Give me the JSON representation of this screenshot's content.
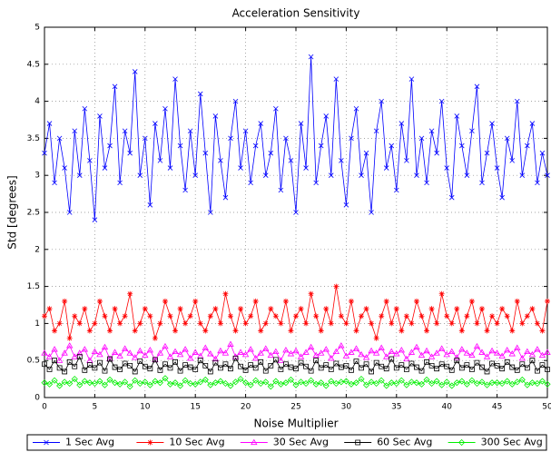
{
  "chart_data": {
    "type": "line",
    "title": "Acceleration Sensitivity",
    "xlabel": "Noise Multiplier",
    "ylabel": "Std [degrees]",
    "xlim": [
      0,
      50
    ],
    "xticks": [
      0,
      5,
      10,
      15,
      20,
      25,
      30,
      35,
      40,
      45,
      50
    ],
    "ylim": [
      0,
      5
    ],
    "yticks": [
      0,
      0.5,
      1,
      1.5,
      2,
      2.5,
      3,
      3.5,
      4,
      4.5,
      5
    ],
    "grid": true,
    "legend": "bottom",
    "x": [
      0,
      0.5,
      1,
      1.5,
      2,
      2.5,
      3,
      3.5,
      4,
      4.5,
      5,
      5.5,
      6,
      6.5,
      7,
      7.5,
      8,
      8.5,
      9,
      9.5,
      10,
      10.5,
      11,
      11.5,
      12,
      12.5,
      13,
      13.5,
      14,
      14.5,
      15,
      15.5,
      16,
      16.5,
      17,
      17.5,
      18,
      18.5,
      19,
      19.5,
      20,
      20.5,
      21,
      21.5,
      22,
      22.5,
      23,
      23.5,
      24,
      24.5,
      25,
      25.5,
      26,
      26.5,
      27,
      27.5,
      28,
      28.5,
      29,
      29.5,
      30,
      30.5,
      31,
      31.5,
      32,
      32.5,
      33,
      33.5,
      34,
      34.5,
      35,
      35.5,
      36,
      36.5,
      37,
      37.5,
      38,
      38.5,
      39,
      39.5,
      40,
      40.5,
      41,
      41.5,
      42,
      42.5,
      43,
      43.5,
      44,
      44.5,
      45,
      45.5,
      46,
      46.5,
      47,
      47.5,
      48,
      48.5,
      49,
      49.5,
      50
    ],
    "series": [
      {
        "name": "1 Sec Avg",
        "color": "#0000ff",
        "marker": "x",
        "values": [
          3.3,
          3.7,
          2.9,
          3.5,
          3.1,
          2.5,
          3.6,
          3.0,
          3.9,
          3.2,
          2.4,
          3.8,
          3.1,
          3.4,
          4.2,
          2.9,
          3.6,
          3.3,
          4.4,
          3.0,
          3.5,
          2.6,
          3.7,
          3.2,
          3.9,
          3.1,
          4.3,
          3.4,
          2.8,
          3.6,
          3.0,
          4.1,
          3.3,
          2.5,
          3.8,
          3.2,
          2.7,
          3.5,
          4.0,
          3.1,
          3.6,
          2.9,
          3.4,
          3.7,
          3.0,
          3.3,
          3.9,
          2.8,
          3.5,
          3.2,
          2.5,
          3.7,
          3.1,
          4.6,
          2.9,
          3.4,
          3.8,
          3.0,
          4.3,
          3.2,
          2.6,
          3.5,
          3.9,
          3.0,
          3.3,
          2.5,
          3.6,
          4.0,
          3.1,
          3.4,
          2.8,
          3.7,
          3.2,
          4.3,
          3.0,
          3.5,
          2.9,
          3.6,
          3.3,
          4.0,
          3.1,
          2.7,
          3.8,
          3.4,
          3.0,
          3.6,
          4.2,
          2.9,
          3.3,
          3.7,
          3.1,
          2.7,
          3.5,
          3.2,
          4.0,
          3.0,
          3.4,
          3.7,
          2.9,
          3.3,
          3.0
        ]
      },
      {
        "name": "10 Sec Avg",
        "color": "#ff0000",
        "marker": "star",
        "values": [
          1.1,
          1.2,
          0.9,
          1.0,
          1.3,
          0.8,
          1.1,
          1.0,
          1.2,
          0.9,
          1.0,
          1.3,
          1.1,
          0.9,
          1.2,
          1.0,
          1.1,
          1.4,
          0.9,
          1.0,
          1.2,
          1.1,
          0.8,
          1.0,
          1.3,
          1.1,
          0.9,
          1.2,
          1.0,
          1.1,
          1.3,
          1.0,
          0.9,
          1.1,
          1.2,
          1.0,
          1.4,
          1.1,
          0.9,
          1.2,
          1.0,
          1.1,
          1.3,
          0.9,
          1.0,
          1.2,
          1.1,
          1.0,
          1.3,
          0.9,
          1.1,
          1.2,
          1.0,
          1.4,
          1.1,
          0.9,
          1.2,
          1.0,
          1.5,
          1.1,
          1.0,
          1.3,
          0.9,
          1.1,
          1.2,
          1.0,
          0.8,
          1.1,
          1.3,
          1.0,
          1.2,
          0.9,
          1.1,
          1.0,
          1.3,
          1.1,
          0.9,
          1.2,
          1.0,
          1.4,
          1.1,
          1.0,
          1.2,
          0.9,
          1.1,
          1.3,
          1.0,
          1.2,
          0.9,
          1.1,
          1.0,
          1.2,
          1.1,
          0.9,
          1.3,
          1.0,
          1.1,
          1.2,
          1.0,
          0.9,
          1.3
        ]
      },
      {
        "name": "30 Sec Avg",
        "color": "#ff00ff",
        "marker": "triangle",
        "values": [
          0.6,
          0.55,
          0.65,
          0.5,
          0.6,
          0.7,
          0.55,
          0.6,
          0.65,
          0.5,
          0.62,
          0.58,
          0.68,
          0.52,
          0.61,
          0.56,
          0.66,
          0.6,
          0.54,
          0.63,
          0.57,
          0.64,
          0.51,
          0.6,
          0.69,
          0.55,
          0.62,
          0.58,
          0.65,
          0.53,
          0.61,
          0.56,
          0.67,
          0.59,
          0.52,
          0.63,
          0.6,
          0.72,
          0.55,
          0.61,
          0.58,
          0.65,
          0.53,
          0.6,
          0.66,
          0.57,
          0.62,
          0.5,
          0.64,
          0.59,
          0.63,
          0.55,
          0.61,
          0.68,
          0.57,
          0.6,
          0.65,
          0.53,
          0.62,
          0.7,
          0.56,
          0.61,
          0.66,
          0.58,
          0.54,
          0.63,
          0.6,
          0.67,
          0.55,
          0.62,
          0.59,
          0.64,
          0.52,
          0.61,
          0.68,
          0.57,
          0.63,
          0.55,
          0.6,
          0.66,
          0.58,
          0.62,
          0.54,
          0.65,
          0.6,
          0.57,
          0.69,
          0.61,
          0.55,
          0.63,
          0.6,
          0.56,
          0.64,
          0.59,
          0.67,
          0.53,
          0.62,
          0.58,
          0.65,
          0.57,
          0.61
        ]
      },
      {
        "name": "60 Sec Avg",
        "color": "#000000",
        "marker": "square",
        "values": [
          0.45,
          0.38,
          0.5,
          0.4,
          0.35,
          0.48,
          0.42,
          0.55,
          0.37,
          0.44,
          0.4,
          0.47,
          0.36,
          0.52,
          0.41,
          0.38,
          0.46,
          0.43,
          0.35,
          0.49,
          0.42,
          0.39,
          0.51,
          0.37,
          0.45,
          0.4,
          0.48,
          0.36,
          0.44,
          0.41,
          0.38,
          0.5,
          0.43,
          0.35,
          0.47,
          0.4,
          0.45,
          0.39,
          0.53,
          0.42,
          0.37,
          0.44,
          0.4,
          0.48,
          0.36,
          0.43,
          0.51,
          0.38,
          0.45,
          0.41,
          0.39,
          0.47,
          0.42,
          0.36,
          0.5,
          0.4,
          0.44,
          0.38,
          0.46,
          0.41,
          0.43,
          0.37,
          0.49,
          0.4,
          0.45,
          0.35,
          0.47,
          0.42,
          0.39,
          0.52,
          0.4,
          0.44,
          0.38,
          0.46,
          0.41,
          0.36,
          0.48,
          0.43,
          0.39,
          0.45,
          0.42,
          0.37,
          0.5,
          0.4,
          0.44,
          0.38,
          0.47,
          0.41,
          0.35,
          0.46,
          0.43,
          0.39,
          0.48,
          0.41,
          0.37,
          0.45,
          0.4,
          0.5,
          0.36,
          0.44,
          0.38
        ]
      },
      {
        "name": "300 Sec Avg",
        "color": "#00ee00",
        "marker": "diamond",
        "values": [
          0.2,
          0.18,
          0.23,
          0.16,
          0.21,
          0.19,
          0.25,
          0.17,
          0.22,
          0.2,
          0.19,
          0.22,
          0.17,
          0.24,
          0.2,
          0.18,
          0.21,
          0.15,
          0.23,
          0.19,
          0.21,
          0.17,
          0.22,
          0.2,
          0.26,
          0.18,
          0.2,
          0.16,
          0.23,
          0.19,
          0.18,
          0.21,
          0.24,
          0.17,
          0.2,
          0.22,
          0.19,
          0.16,
          0.21,
          0.25,
          0.2,
          0.17,
          0.23,
          0.19,
          0.21,
          0.15,
          0.22,
          0.18,
          0.2,
          0.24,
          0.17,
          0.21,
          0.19,
          0.23,
          0.18,
          0.2,
          0.16,
          0.22,
          0.19,
          0.21,
          0.22,
          0.18,
          0.2,
          0.25,
          0.17,
          0.21,
          0.19,
          0.23,
          0.16,
          0.2,
          0.19,
          0.23,
          0.17,
          0.21,
          0.2,
          0.18,
          0.24,
          0.19,
          0.22,
          0.17,
          0.21,
          0.16,
          0.2,
          0.22,
          0.18,
          0.23,
          0.19,
          0.21,
          0.17,
          0.2,
          0.2,
          0.19,
          0.22,
          0.18,
          0.21,
          0.24,
          0.17,
          0.2,
          0.19,
          0.22,
          0.18
        ]
      }
    ]
  }
}
